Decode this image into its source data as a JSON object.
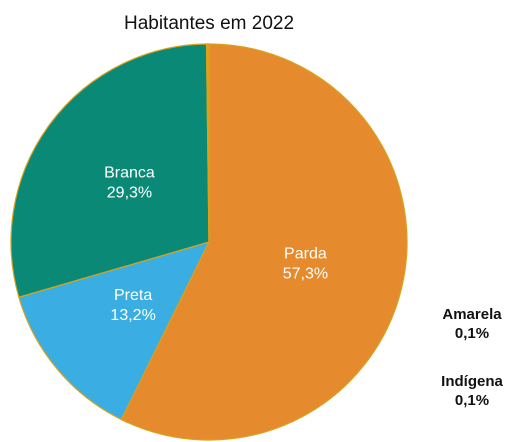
{
  "chart_data": {
    "type": "pie",
    "title": "Habitantes em 2022",
    "categories": [
      "Parda",
      "Preta",
      "Branca",
      "Amarela",
      "Indígena"
    ],
    "values": [
      57.3,
      13.2,
      29.3,
      0.1,
      0.1
    ],
    "value_labels": [
      "57,3%",
      "13,2%",
      "29,3%",
      "0,1%",
      "0,1%"
    ],
    "colors": [
      "#e68a2e",
      "#3aaee2",
      "#0a8a76",
      "#f2c41a",
      "#e0b21a"
    ]
  }
}
